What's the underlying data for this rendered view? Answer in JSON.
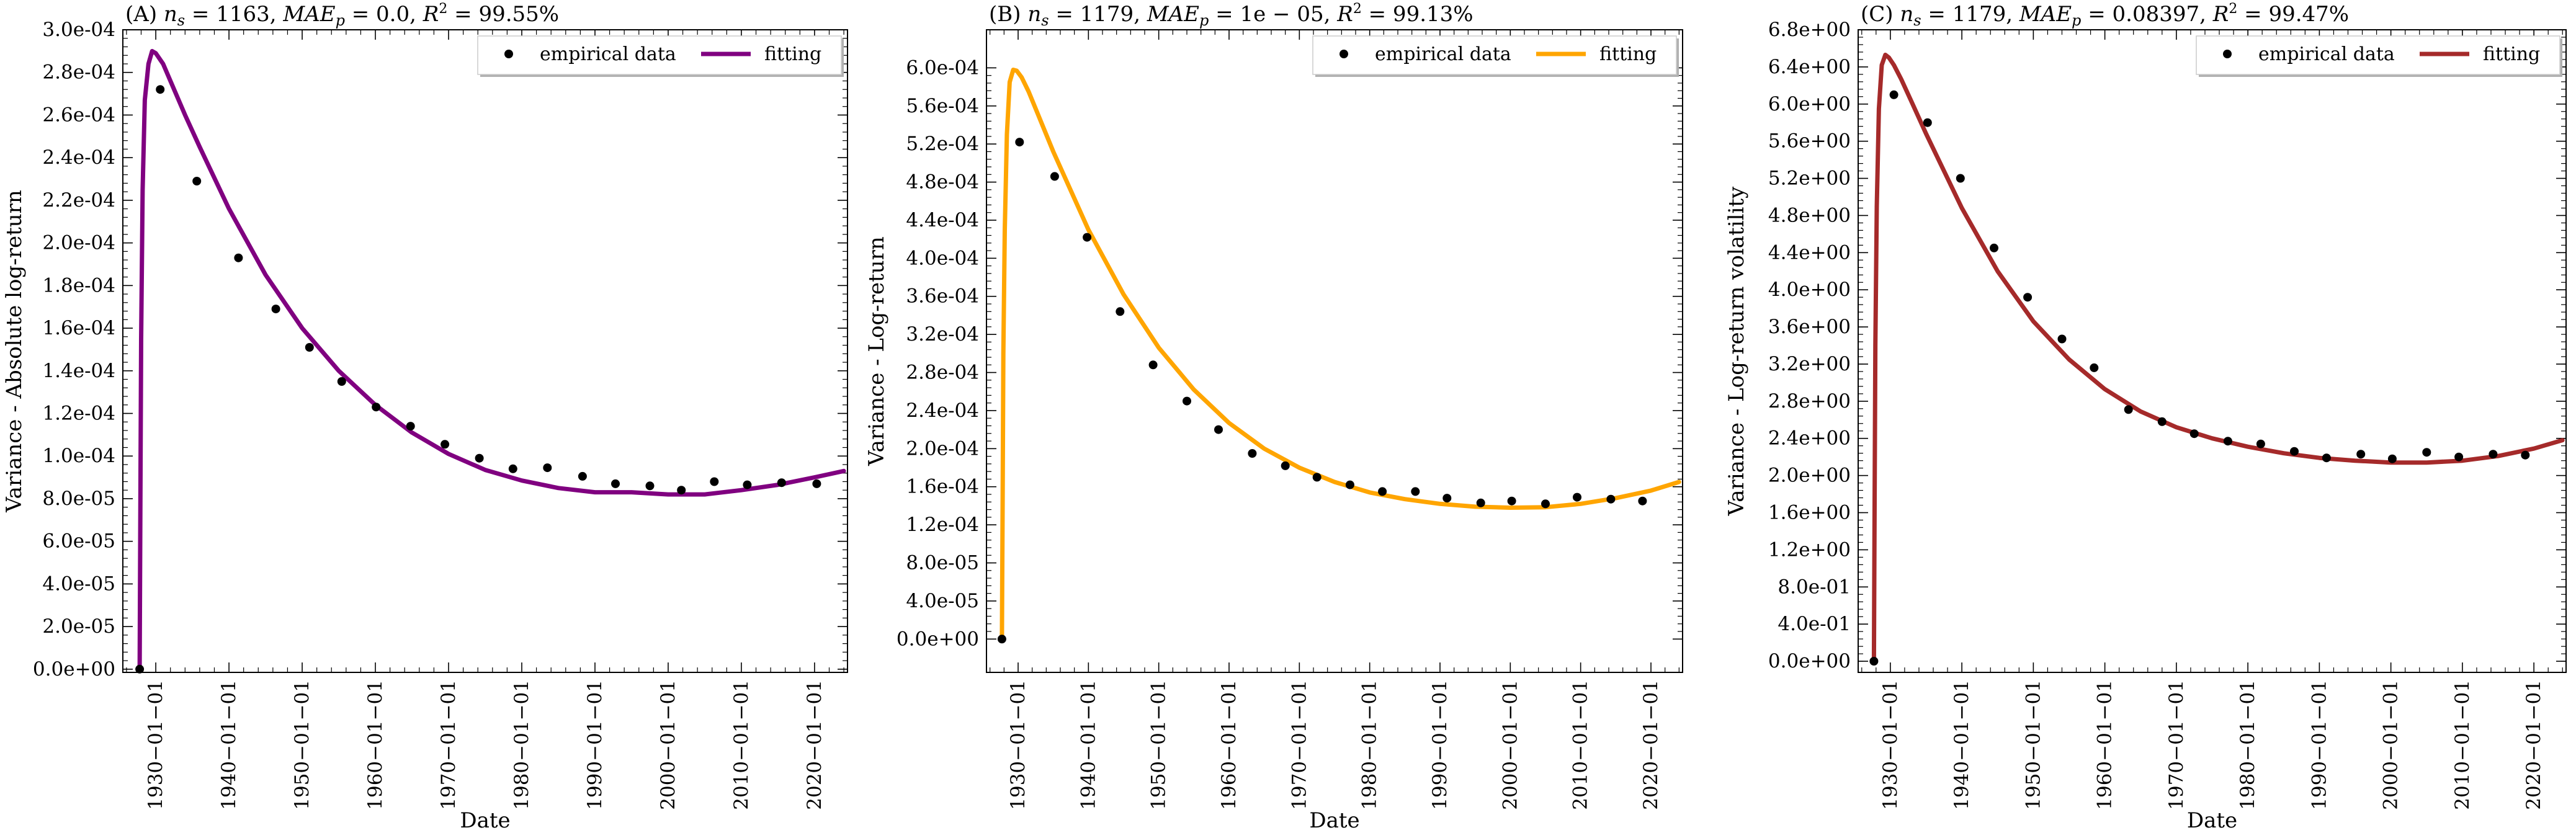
{
  "figure": {
    "xlabel": "Date"
  },
  "chart_data": [
    {
      "type": "scatter",
      "title": "(A) n_s = 1163, MAE_p = 0.0, R² = 99.55%",
      "xlabel": "Date",
      "ylabel": "Variance - Absolute log-return",
      "legend": {
        "position": "top-right",
        "entries": [
          "empirical data",
          "fitting"
        ]
      },
      "fit_color": "#800080",
      "x_tick_labels": [
        "1930−01−01",
        "1940−01−01",
        "1950−01−01",
        "1960−01−01",
        "1970−01−01",
        "1980−01−01",
        "1990−01−01",
        "2000−01−01",
        "2010−01−01",
        "2020−01−01"
      ],
      "x_ticks": [
        1930,
        1940,
        1950,
        1960,
        1970,
        1980,
        1990,
        2000,
        2010,
        2020
      ],
      "xlim": [
        1925.5,
        2024.5
      ],
      "y_tick_labels": [
        "0.0e+00",
        "2.0e-05",
        "4.0e-05",
        "6.0e-05",
        "8.0e-05",
        "1.0e-04",
        "1.2e-04",
        "1.4e-04",
        "1.6e-04",
        "1.8e-04",
        "2.0e-04",
        "2.2e-04",
        "2.4e-04",
        "2.6e-04",
        "2.8e-04",
        "3.0e-04"
      ],
      "y_ticks": [
        0,
        2e-05,
        4e-05,
        6e-05,
        8e-05,
        0.0001,
        0.00012,
        0.00014,
        0.00016,
        0.00018,
        0.0002,
        0.00022,
        0.00024,
        0.00026,
        0.00028,
        0.0003
      ],
      "ylim": [
        -1.5e-06,
        0.0003
      ],
      "series": [
        {
          "name": "empirical data",
          "kind": "scatter",
          "x": [
            1927.8,
            1930.6,
            1935.6,
            1941.3,
            1946.4,
            1951.0,
            1955.4,
            1960.1,
            1964.8,
            1969.5,
            1974.2,
            1978.8,
            1983.5,
            1988.3,
            1992.8,
            1997.5,
            2001.8,
            2006.3,
            2010.8,
            2015.5,
            2020.3
          ],
          "y": [
            0,
            0.000272,
            0.000229,
            0.000193,
            0.000169,
            0.000151,
            0.000135,
            0.000123,
            0.000114,
            0.0001055,
            9.9e-05,
            9.4e-05,
            9.45e-05,
            9.05e-05,
            8.7e-05,
            8.6e-05,
            8.4e-05,
            8.8e-05,
            8.65e-05,
            8.75e-05,
            8.7e-05
          ]
        },
        {
          "name": "fitting",
          "kind": "line",
          "x": [
            1927.8,
            1927.9,
            1928.0,
            1928.2,
            1928.5,
            1929.0,
            1929.5,
            1930.0,
            1931.0,
            1932.0,
            1934.0,
            1936.0,
            1940.0,
            1945.0,
            1950.0,
            1955.0,
            1960.0,
            1965.0,
            1970.0,
            1975.0,
            1980.0,
            1985.0,
            1990.0,
            1995.0,
            2000.0,
            2005.0,
            2010.0,
            2015.0,
            2020.0,
            2024.0
          ],
          "y": [
            0,
            8e-05,
            0.000155,
            0.000225,
            0.000267,
            0.000284,
            0.00029,
            0.000289,
            0.000284,
            0.000276,
            0.00026,
            0.000245,
            0.000216,
            0.000185,
            0.00016,
            0.00014,
            0.000124,
            0.000111,
            0.000101,
            9.35e-05,
            8.85e-05,
            8.5e-05,
            8.3e-05,
            8.3e-05,
            8.2e-05,
            8.2e-05,
            8.4e-05,
            8.65e-05,
            9e-05,
            9.3e-05
          ]
        }
      ]
    },
    {
      "type": "scatter",
      "title": "(B) n_s = 1179, MAE_p = 1e − 05, R² = 99.13%",
      "xlabel": "Date",
      "ylabel": "Variance - Log-return",
      "legend": {
        "position": "top-right",
        "entries": [
          "empirical data",
          "fitting"
        ]
      },
      "fit_color": "#FFA500",
      "x_tick_labels": [
        "1930−01−01",
        "1940−01−01",
        "1950−01−01",
        "1960−01−01",
        "1970−01−01",
        "1980−01−01",
        "1990−01−01",
        "2000−01−01",
        "2010−01−01",
        "2020−01−01"
      ],
      "x_ticks": [
        1930,
        1940,
        1950,
        1960,
        1970,
        1980,
        1990,
        2000,
        2010,
        2020
      ],
      "xlim": [
        1925.5,
        2024.5
      ],
      "y_tick_labels": [
        "0.0e+00",
        "4.0e-05",
        "8.0e-05",
        "1.2e-04",
        "1.6e-04",
        "2.0e-04",
        "2.4e-04",
        "2.8e-04",
        "3.2e-04",
        "3.6e-04",
        "4.0e-04",
        "4.4e-04",
        "4.8e-04",
        "5.2e-04",
        "5.6e-04",
        "6.0e-04"
      ],
      "y_ticks": [
        0,
        4e-05,
        8e-05,
        0.00012,
        0.00016,
        0.0002,
        0.00024,
        0.00028,
        0.00032,
        0.00036,
        0.0004,
        0.00044,
        0.00048,
        0.00052,
        0.00056,
        0.0006
      ],
      "ylim": [
        -3.5e-05,
        0.00064
      ],
      "series": [
        {
          "name": "empirical data",
          "kind": "scatter",
          "x": [
            1927.7,
            1930.2,
            1935.2,
            1939.8,
            1944.5,
            1949.2,
            1954.0,
            1958.5,
            1963.3,
            1968.0,
            1972.5,
            1977.2,
            1981.8,
            1986.5,
            1991.0,
            1995.8,
            2000.2,
            2005.0,
            2009.5,
            2014.3,
            2018.8
          ],
          "y": [
            0,
            0.000522,
            0.000486,
            0.000422,
            0.000344,
            0.000288,
            0.00025,
            0.00022,
            0.000195,
            0.000182,
            0.00017,
            0.000162,
            0.000155,
            0.000155,
            0.000148,
            0.000143,
            0.000145,
            0.000142,
            0.000149,
            0.000147,
            0.000145
          ]
        },
        {
          "name": "fitting",
          "kind": "line",
          "x": [
            1927.7,
            1927.8,
            1927.9,
            1928.1,
            1928.4,
            1928.8,
            1929.3,
            1929.8,
            1930.5,
            1931.5,
            1933.0,
            1935.0,
            1940.0,
            1945.0,
            1950.0,
            1955.0,
            1960.0,
            1965.0,
            1970.0,
            1975.0,
            1980.0,
            1985.0,
            1990.0,
            1995.0,
            2000.0,
            2005.0,
            2010.0,
            2015.0,
            2020.0,
            2024.0
          ],
          "y": [
            0,
            0.00015,
            0.0003,
            0.00043,
            0.00053,
            0.000585,
            0.000598,
            0.000597,
            0.00059,
            0.000575,
            0.000548,
            0.000512,
            0.00043,
            0.000362,
            0.000306,
            0.000262,
            0.000227,
            0.0002,
            0.00018,
            0.000165,
            0.000154,
            0.000147,
            0.000142,
            0.000139,
            0.000138,
            0.0001385,
            0.000142,
            0.000148,
            0.000156,
            0.000165
          ]
        }
      ]
    },
    {
      "type": "scatter",
      "title": "(C) n_s = 1179, MAE_p = 0.08397, R² = 99.47%",
      "xlabel": "Date",
      "ylabel": "Variance - Log-return volatility",
      "legend": {
        "position": "top-right",
        "entries": [
          "empirical data",
          "fitting"
        ]
      },
      "fit_color": "#A52A2A",
      "x_tick_labels": [
        "1930−01−01",
        "1940−01−01",
        "1950−01−01",
        "1960−01−01",
        "1970−01−01",
        "1980−01−01",
        "1990−01−01",
        "2000−01−01",
        "2010−01−01",
        "2020−01−01"
      ],
      "x_ticks": [
        1930,
        1940,
        1950,
        1960,
        1970,
        1980,
        1990,
        2000,
        2010,
        2020
      ],
      "xlim": [
        1925.5,
        2024.5
      ],
      "y_tick_labels": [
        "0.0e+00",
        "4.0e-01",
        "8.0e-01",
        "1.2e+00",
        "1.6e+00",
        "2.0e+00",
        "2.4e+00",
        "2.8e+00",
        "3.2e+00",
        "3.6e+00",
        "4.0e+00",
        "4.4e+00",
        "4.8e+00",
        "5.2e+00",
        "5.6e+00",
        "6.0e+00",
        "6.4e+00",
        "6.8e+00"
      ],
      "y_ticks": [
        0,
        0.4,
        0.8,
        1.2,
        1.6,
        2.0,
        2.4,
        2.8,
        3.2,
        3.6,
        4.0,
        4.4,
        4.8,
        5.2,
        5.6,
        6.0,
        6.4,
        6.8
      ],
      "ylim": [
        -0.12,
        6.8
      ],
      "series": [
        {
          "name": "empirical data",
          "kind": "scatter",
          "x": [
            1927.7,
            1930.5,
            1935.2,
            1939.8,
            1944.5,
            1949.2,
            1954.0,
            1958.5,
            1963.3,
            1968.0,
            1972.5,
            1977.2,
            1981.8,
            1986.5,
            1991.0,
            1995.8,
            2000.2,
            2005.0,
            2009.5,
            2014.3,
            2018.8
          ],
          "y": [
            0,
            6.1,
            5.8,
            5.2,
            4.45,
            3.92,
            3.47,
            3.16,
            2.71,
            2.58,
            2.45,
            2.37,
            2.34,
            2.26,
            2.19,
            2.23,
            2.18,
            2.25,
            2.2,
            2.23,
            2.22
          ]
        },
        {
          "name": "fitting",
          "kind": "line",
          "x": [
            1927.7,
            1927.8,
            1927.9,
            1928.1,
            1928.4,
            1928.8,
            1929.3,
            1929.8,
            1930.5,
            1931.5,
            1933.0,
            1935.0,
            1940.0,
            1945.0,
            1950.0,
            1955.0,
            1960.0,
            1965.0,
            1970.0,
            1975.0,
            1980.0,
            1985.0,
            1990.0,
            1995.0,
            2000.0,
            2005.0,
            2010.0,
            2015.0,
            2020.0,
            2024.0
          ],
          "y": [
            0,
            1.7,
            3.4,
            4.9,
            5.95,
            6.42,
            6.53,
            6.5,
            6.42,
            6.27,
            6.02,
            5.68,
            4.88,
            4.2,
            3.66,
            3.25,
            2.93,
            2.69,
            2.52,
            2.4,
            2.31,
            2.24,
            2.19,
            2.16,
            2.14,
            2.14,
            2.16,
            2.21,
            2.29,
            2.38
          ]
        }
      ]
    }
  ]
}
